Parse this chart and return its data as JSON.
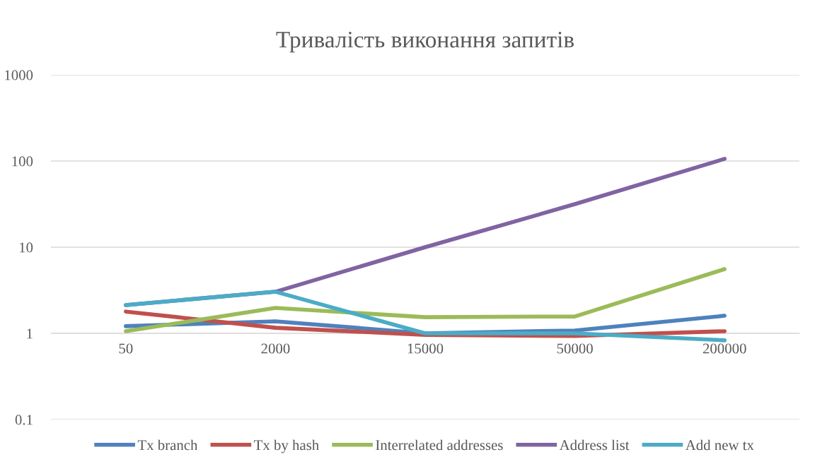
{
  "chart_data": {
    "type": "line",
    "title": "Тривалість виконання запитів",
    "categories": [
      "50",
      "2000",
      "15000",
      "50000",
      "200000"
    ],
    "series": [
      {
        "name": "Tx branch",
        "color": "#4f81bd",
        "values": [
          1.21,
          1.38,
          1.0,
          1.08,
          1.6
        ]
      },
      {
        "name": "Tx by hash",
        "color": "#c0504d",
        "values": [
          1.79,
          1.16,
          0.96,
          0.93,
          1.06
        ]
      },
      {
        "name": "Interrelated addresses",
        "color": "#9bbb59",
        "values": [
          1.06,
          1.97,
          1.54,
          1.57,
          5.57
        ]
      },
      {
        "name": "Address list",
        "color": "#8064a2",
        "values": [
          2.13,
          3.04,
          10,
          31.6,
          106
        ]
      },
      {
        "name": "Add new tx",
        "color": "#4bacc6",
        "values": [
          2.13,
          3.04,
          1.0,
          1.0,
          0.83
        ]
      }
    ],
    "log": "y",
    "ylim": [
      0.1,
      1000
    ],
    "yticks": [
      0.1,
      1,
      10,
      100,
      1000
    ],
    "grid": "y",
    "legend": "bottom",
    "marker": "none",
    "line_style": "solid"
  }
}
